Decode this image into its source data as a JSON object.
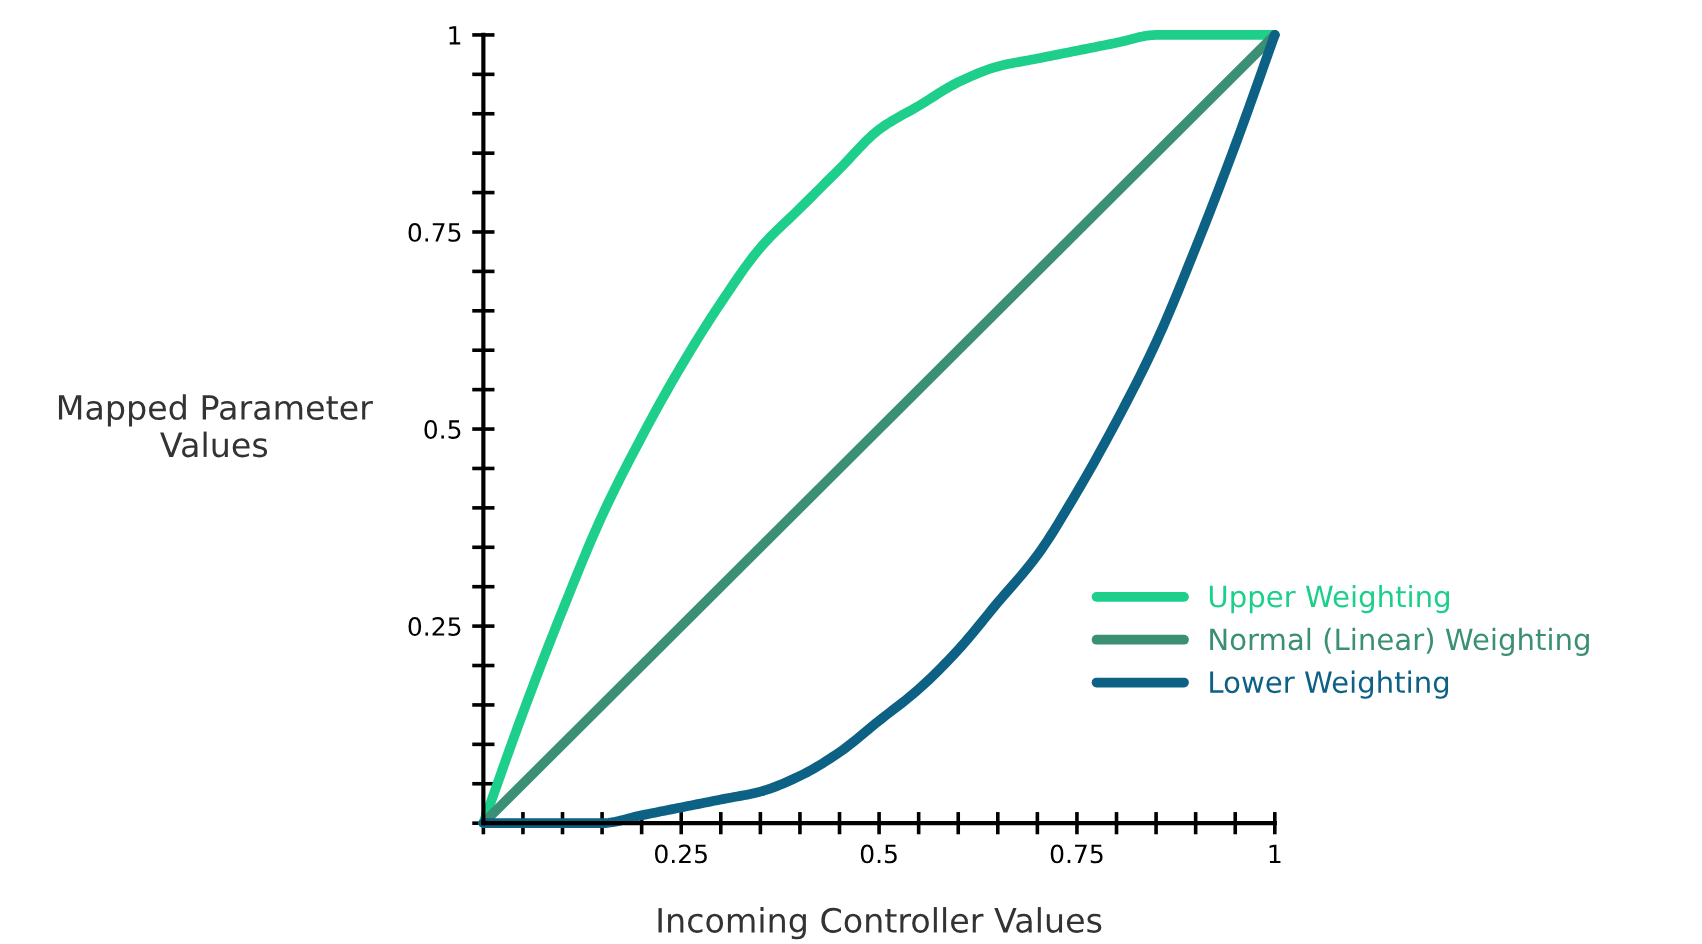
{
  "chart_data": {
    "type": "line",
    "xlabel": "Incoming Controller Values",
    "ylabel": "Mapped Parameter\nValues",
    "xlim": [
      0,
      1
    ],
    "ylim": [
      0,
      1
    ],
    "xticks": [
      {
        "value": 0,
        "label": null
      },
      {
        "value": 0.05,
        "label": null
      },
      {
        "value": 0.1,
        "label": null
      },
      {
        "value": 0.15,
        "label": null
      },
      {
        "value": 0.2,
        "label": null
      },
      0.25,
      {
        "value": 0.3,
        "label": null
      },
      {
        "value": 0.35,
        "label": null
      },
      {
        "value": 0.4,
        "label": null
      },
      {
        "value": 0.45,
        "label": null
      },
      0.5,
      {
        "value": 0.55,
        "label": null
      },
      {
        "value": 0.6,
        "label": null
      },
      {
        "value": 0.65,
        "label": null
      },
      {
        "value": 0.7,
        "label": null
      },
      0.75,
      {
        "value": 0.8,
        "label": null
      },
      {
        "value": 0.85,
        "label": null
      },
      {
        "value": 0.9,
        "label": null
      },
      {
        "value": 0.95,
        "label": null
      },
      1
    ],
    "yticks": [
      {
        "value": 0,
        "label": null
      },
      {
        "value": 0.05,
        "label": null
      },
      {
        "value": 0.1,
        "label": null
      },
      {
        "value": 0.15,
        "label": null
      },
      {
        "value": 0.2,
        "label": null
      },
      0.25,
      {
        "value": 0.3,
        "label": null
      },
      {
        "value": 0.35,
        "label": null
      },
      {
        "value": 0.4,
        "label": null
      },
      {
        "value": 0.45,
        "label": null
      },
      0.5,
      {
        "value": 0.55,
        "label": null
      },
      {
        "value": 0.6,
        "label": null
      },
      {
        "value": 0.65,
        "label": null
      },
      {
        "value": 0.7,
        "label": null
      },
      0.75,
      {
        "value": 0.8,
        "label": null
      },
      {
        "value": 0.85,
        "label": null
      },
      {
        "value": 0.9,
        "label": null
      },
      {
        "value": 0.95,
        "label": null
      },
      1
    ],
    "x": [
      0,
      0.05,
      0.1,
      0.15,
      0.2,
      0.25,
      0.3,
      0.35,
      0.4,
      0.45,
      0.5,
      0.55,
      0.6,
      0.65,
      0.7,
      0.75,
      0.8,
      0.85,
      0.9,
      0.95,
      1
    ],
    "series": [
      {
        "name": "Upper Weighting",
        "color": "#1dcf8b",
        "values": [
          0,
          0.14,
          0.27,
          0.39,
          0.49,
          0.58,
          0.66,
          0.73,
          0.78,
          0.83,
          0.88,
          0.91,
          0.94,
          0.96,
          0.97,
          0.98,
          0.99,
          1,
          1,
          1,
          1
        ]
      },
      {
        "name": "Normal (Linear) Weighting",
        "color": "#3a8f74",
        "x": [
          0,
          1
        ],
        "values": [
          0,
          1
        ]
      },
      {
        "name": "Lower Weighting",
        "color": "#0d6185",
        "values": [
          0,
          0,
          0,
          0,
          0.01,
          0.02,
          0.03,
          0.04,
          0.06,
          0.09,
          0.13,
          0.17,
          0.22,
          0.28,
          0.34,
          0.42,
          0.51,
          0.61,
          0.73,
          0.86,
          1
        ]
      }
    ],
    "legend": "right",
    "grid": false,
    "marker": "none",
    "line_style": "solid"
  }
}
